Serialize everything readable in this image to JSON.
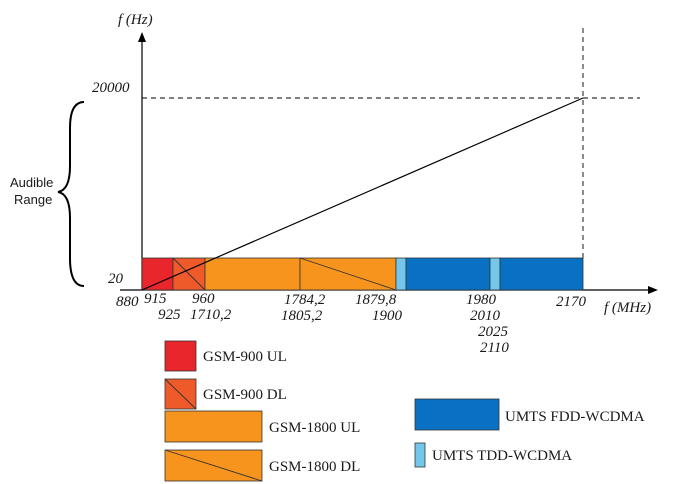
{
  "axes": {
    "y_title": "f (Hz)",
    "x_title": "f (MHz)",
    "y_top_value": "20000",
    "y_low_value": "20"
  },
  "audible": {
    "line1": "Audible",
    "line2": "Range"
  },
  "x_ticks": {
    "t880": "880",
    "t915": "915",
    "t925": "925",
    "t960": "960",
    "t1710": "1710,2",
    "t1784": "1784,2",
    "t1805": "1805,2",
    "t1879": "1879,8",
    "t1900": "1900",
    "t1980": "1980",
    "t2010": "2010",
    "t2025": "2025",
    "t2110": "2110",
    "t2170": "2170"
  },
  "legend": {
    "gsm900_ul": "GSM-900 UL",
    "gsm900_dl": "GSM-900 DL",
    "gsm1800_ul": "GSM-1800 UL",
    "gsm1800_dl": "GSM-1800 DL",
    "umts_fdd": "UMTS FDD-WCDMA",
    "umts_tdd": "UMTS TDD-WCDMA"
  },
  "colors": {
    "gsm900_ul": "#e8262b",
    "gsm900_dl": "#ef5a2a",
    "gsm1800": "#f7941d",
    "umts_fdd": "#0871c4",
    "umts_tdd": "#74c7ec"
  }
}
